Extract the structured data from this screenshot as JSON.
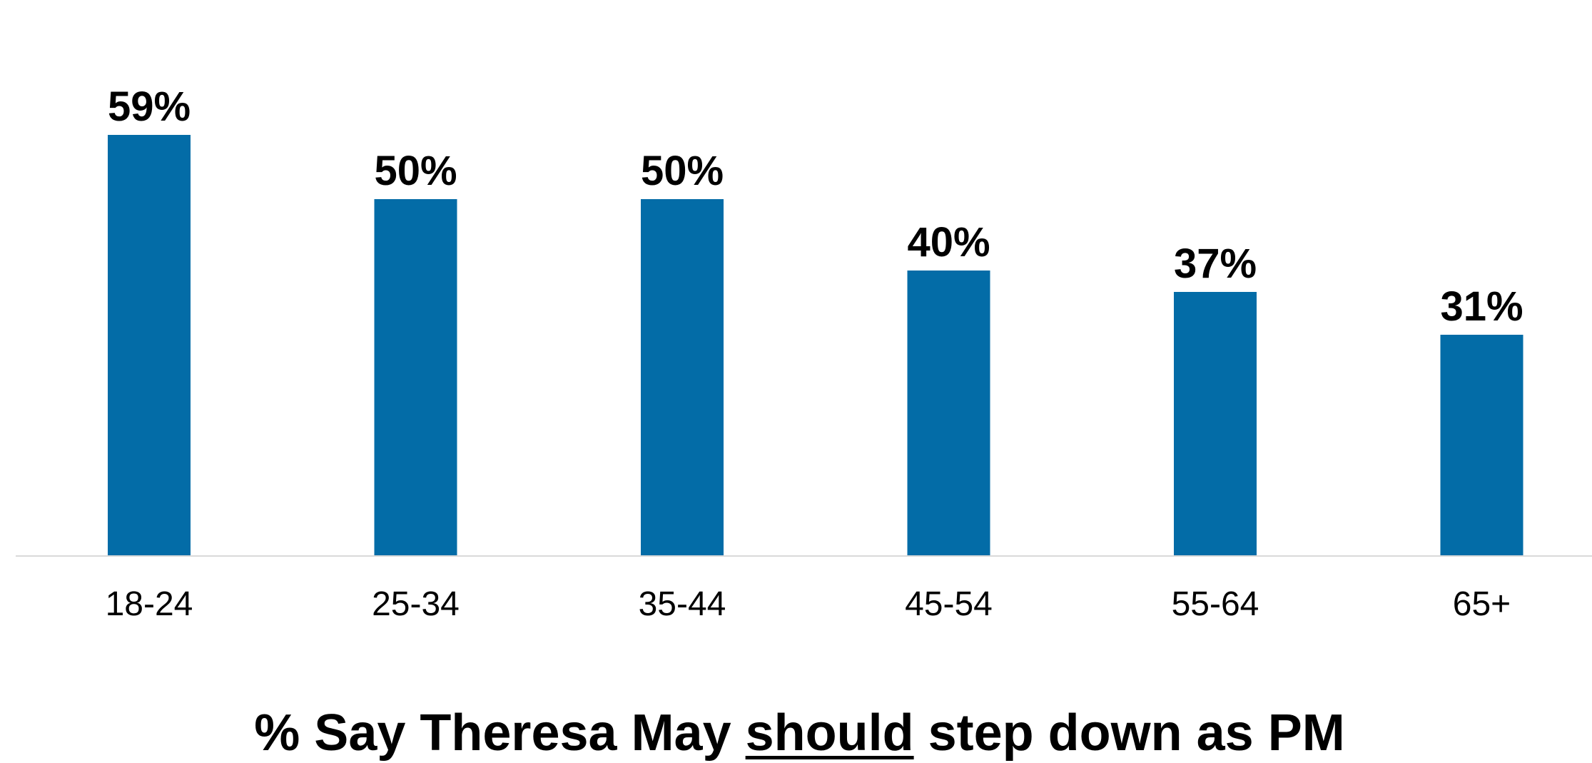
{
  "chart_data": {
    "type": "bar",
    "categories": [
      "18-24",
      "25-34",
      "35-44",
      "45-54",
      "55-64",
      "65+"
    ],
    "values": [
      59,
      50,
      50,
      40,
      37,
      31
    ],
    "value_labels": [
      "59%",
      "50%",
      "50%",
      "40%",
      "37%",
      "31%"
    ],
    "title": {
      "prefix": "% Say Theresa May ",
      "emphasis": "should",
      "suffix": " step down as PM"
    },
    "xlabel": "",
    "ylabel": "",
    "ylim": [
      0,
      59
    ],
    "grid": false,
    "legend": "none",
    "colors": {
      "bar": "#036ca7",
      "baseline": "#d9d9d9",
      "text": "#000000"
    }
  }
}
